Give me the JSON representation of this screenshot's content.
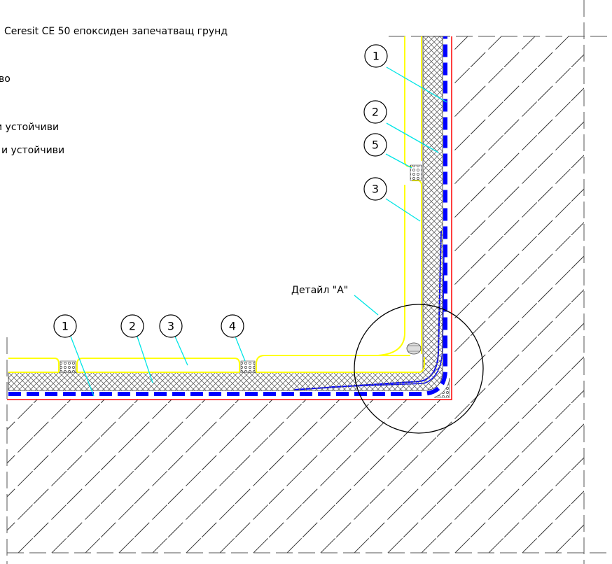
{
  "legend": {
    "line1": "Ceresit CE 50 епоксиден запечатващ грунд",
    "line2": "во",
    "line3": "и устойчиви",
    "line4": "и устойчиви"
  },
  "detail_label": "Детайл \"А\"",
  "callouts": {
    "vertical": [
      "1",
      "2",
      "5",
      "3"
    ],
    "horizontal": [
      "1",
      "2",
      "3",
      "4"
    ]
  },
  "colors": {
    "yellow": "#ffff00",
    "blue": "#0000ff",
    "red": "#ff0000",
    "cyan": "#00e5e5",
    "hatch": "#000000"
  }
}
